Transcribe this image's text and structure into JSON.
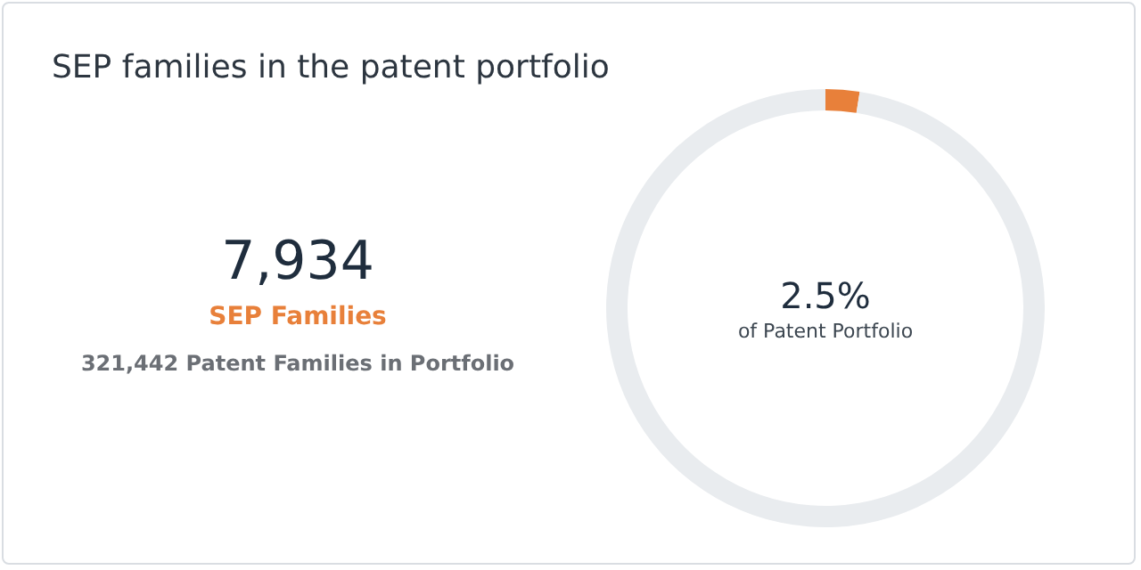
{
  "chart_data": {
    "type": "donut",
    "title": "SEP families in the patent portfolio",
    "categories": [
      null,
      null
    ],
    "values": [
      2.5,
      97.5
    ],
    "colors": [
      "#e8803a",
      "#e9ecef"
    ],
    "annotations": [
      "7,934",
      "SEP Families",
      "321,442 Patent Families in Portfolio",
      "2.5%",
      "of Patent Portfolio"
    ]
  }
}
